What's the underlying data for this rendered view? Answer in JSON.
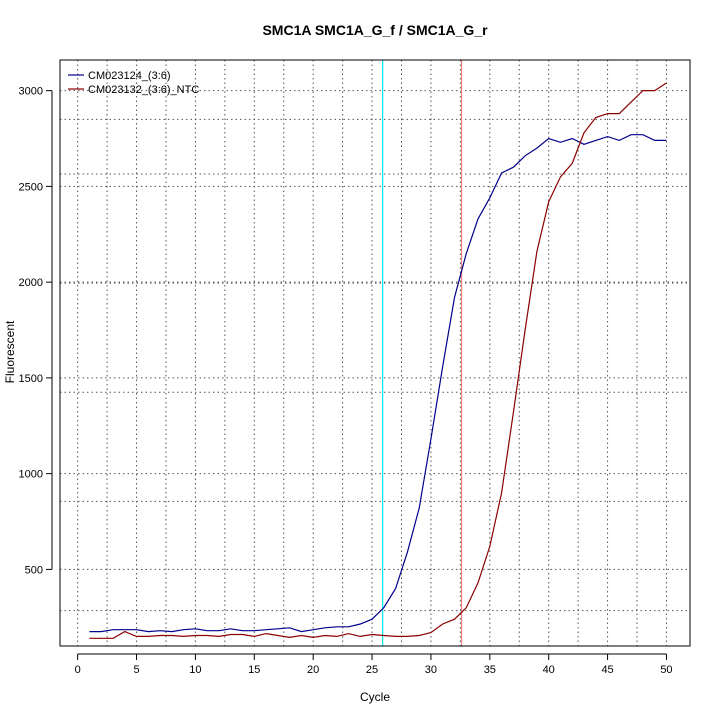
{
  "chart_data": {
    "type": "line",
    "title": "SMC1A  SMC1A_G_f / SMC1A_G_r",
    "xlabel": "Cycle",
    "ylabel": "Fluorescent",
    "xlim": [
      -1.5,
      52
    ],
    "ylim": [
      100,
      3160
    ],
    "x_ticks": [
      0,
      5,
      10,
      15,
      20,
      25,
      30,
      35,
      40,
      45,
      50
    ],
    "y_ticks": [
      500,
      1000,
      1500,
      2000,
      2500,
      3000
    ],
    "grid": true,
    "vgrid": [
      2.5,
      7.5,
      12.5,
      17.5,
      22.5,
      27.5,
      32.5,
      37.5,
      42.5,
      47.5
    ],
    "hgrid": [
      285,
      855,
      1425,
      1995,
      2565,
      2850
    ],
    "legend_position": "top-left",
    "thresholds": [
      {
        "x": 25.9,
        "color": "#00e5ee"
      },
      {
        "x": 32.6,
        "color": "#f08080"
      }
    ],
    "series": [
      {
        "name": "CM023124_(3:6)",
        "color": "#00008b",
        "x": [
          1,
          2,
          3,
          4,
          5,
          6,
          7,
          8,
          9,
          10,
          11,
          12,
          13,
          14,
          15,
          16,
          17,
          18,
          19,
          20,
          21,
          22,
          23,
          24,
          25,
          26,
          27,
          28,
          29,
          30,
          31,
          32,
          33,
          34,
          35,
          36,
          37,
          38,
          39,
          40,
          41,
          42,
          43,
          44,
          45,
          46,
          47,
          48,
          49,
          50
        ],
        "y": [
          175,
          175,
          185,
          185,
          185,
          175,
          180,
          175,
          185,
          190,
          180,
          180,
          190,
          180,
          180,
          185,
          190,
          195,
          175,
          185,
          195,
          200,
          200,
          215,
          240,
          300,
          400,
          590,
          820,
          1180,
          1560,
          1920,
          2150,
          2330,
          2440,
          2570,
          2600,
          2660,
          2700,
          2750,
          2730,
          2750,
          2720,
          2740,
          2760,
          2740,
          2770,
          2770,
          2740,
          2740
        ]
      },
      {
        "name": "CM023132_(3:6)_NTC",
        "color": "#8b0000",
        "x": [
          1,
          2,
          3,
          4,
          5,
          6,
          7,
          8,
          9,
          10,
          11,
          12,
          13,
          14,
          15,
          16,
          17,
          18,
          19,
          20,
          21,
          22,
          23,
          24,
          25,
          26,
          27,
          28,
          29,
          30,
          31,
          32,
          33,
          34,
          35,
          36,
          37,
          38,
          39,
          40,
          41,
          42,
          43,
          44,
          45,
          46,
          47,
          48,
          49,
          50
        ],
        "y": [
          140,
          140,
          140,
          175,
          150,
          150,
          155,
          155,
          150,
          155,
          155,
          150,
          160,
          160,
          150,
          165,
          155,
          145,
          155,
          145,
          155,
          150,
          165,
          150,
          160,
          155,
          150,
          150,
          155,
          170,
          215,
          240,
          300,
          430,
          620,
          900,
          1320,
          1750,
          2160,
          2420,
          2550,
          2620,
          2780,
          2860,
          2880,
          2880,
          2940,
          3000,
          3000,
          3040
        ]
      }
    ]
  }
}
